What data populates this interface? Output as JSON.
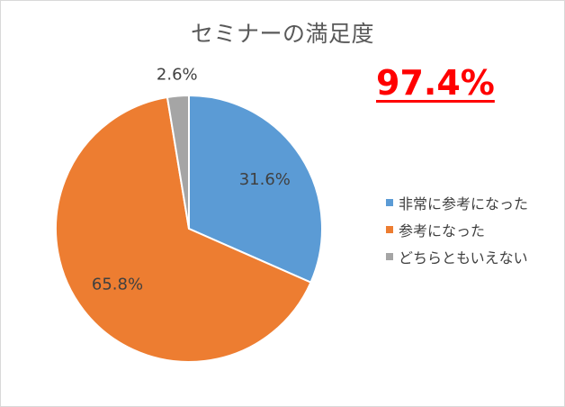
{
  "chart_data": {
    "type": "pie",
    "title": "セミナーの満足度",
    "highlight": "97.4%",
    "categories": [
      "非常に参考になった",
      "参考になった",
      "どちらともいえない"
    ],
    "values": [
      31.6,
      65.8,
      2.6
    ],
    "labels": [
      "31.6%",
      "65.8%",
      "2.6%"
    ],
    "colors": [
      "#5b9bd5",
      "#ed7d31",
      "#a5a5a5"
    ],
    "legend_position": "right"
  }
}
